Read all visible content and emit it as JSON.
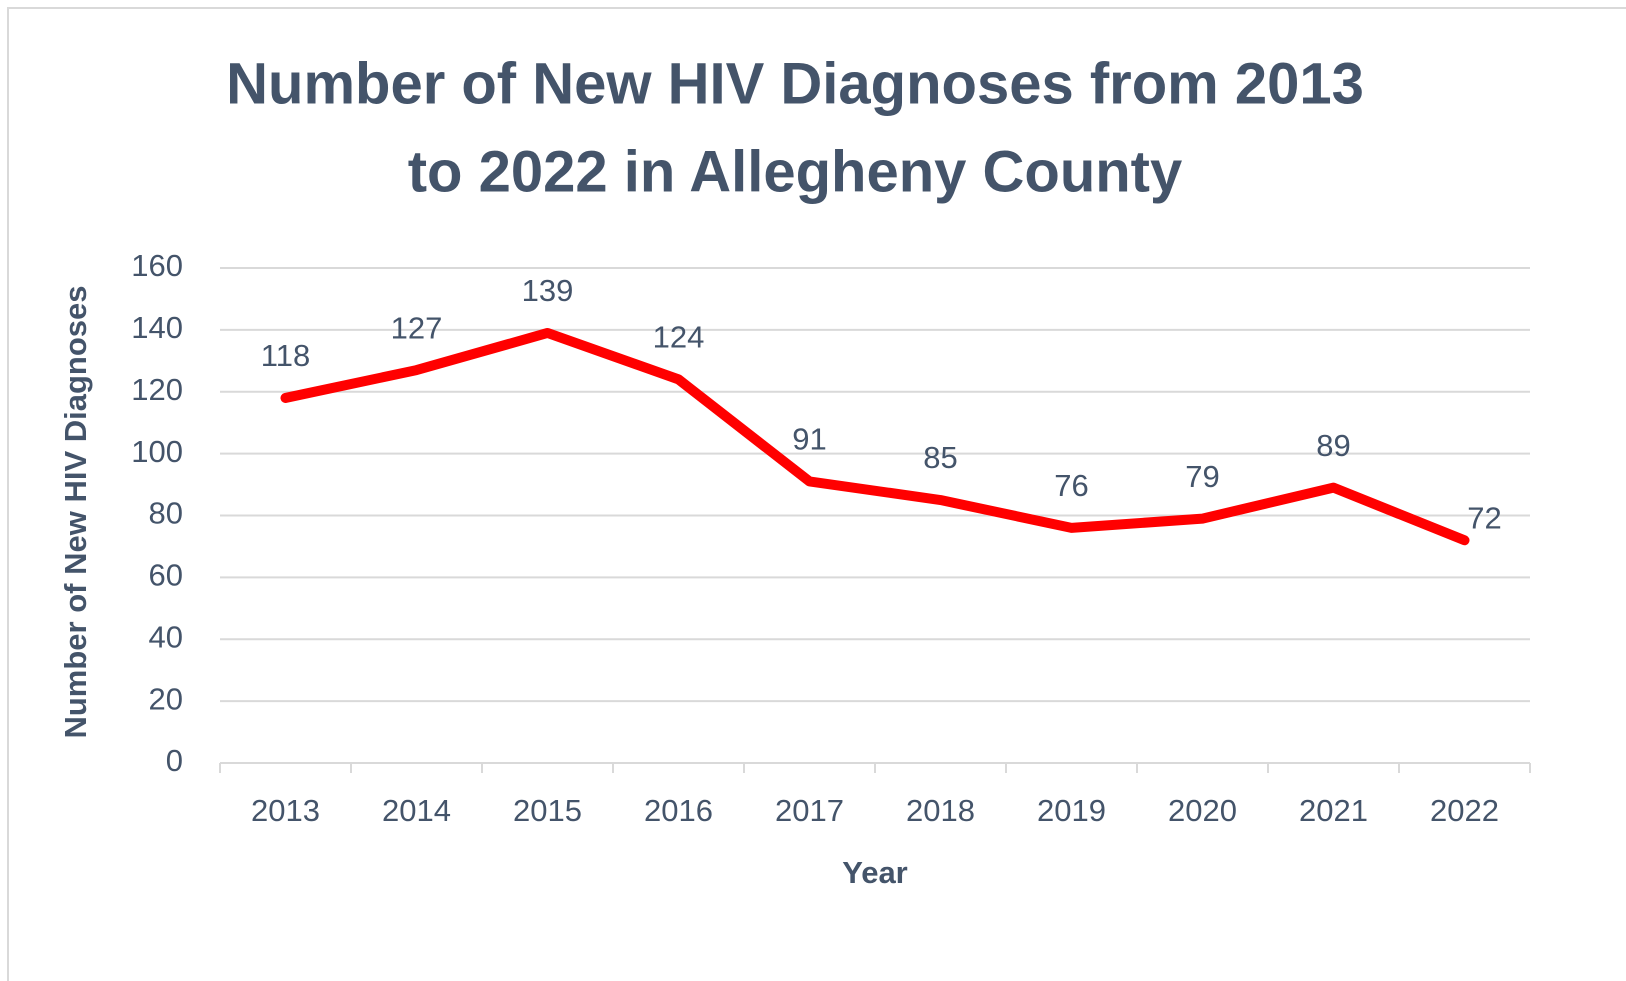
{
  "chart_data": {
    "type": "line",
    "title": [
      "Number of New HIV Diagnoses from 2013",
      "to 2022 in Allegheny County"
    ],
    "x_label": "Year",
    "y_label": "Number of New HIV Diagnoses",
    "categories": [
      "2013",
      "2014",
      "2015",
      "2016",
      "2017",
      "2018",
      "2019",
      "2020",
      "2021",
      "2022"
    ],
    "series": [
      {
        "name": "New HIV Diagnoses",
        "color": "#ff0000",
        "values": [
          118,
          127,
          139,
          124,
          91,
          85,
          76,
          79,
          89,
          72
        ]
      }
    ],
    "ylim": [
      0,
      160
    ],
    "yticks": [
      0,
      20,
      40,
      60,
      80,
      100,
      120,
      140,
      160
    ],
    "grid": true
  }
}
